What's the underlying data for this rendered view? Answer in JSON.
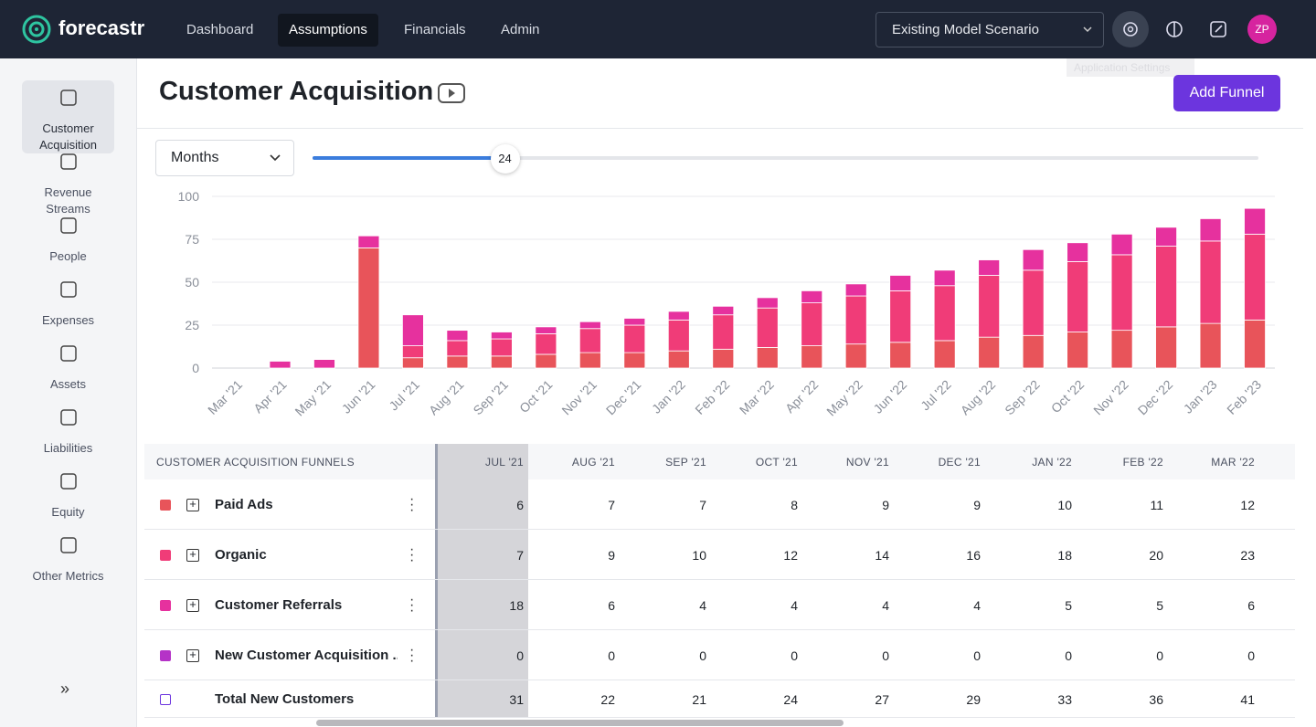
{
  "app": {
    "logo": "forecastr",
    "nav": [
      "Dashboard",
      "Assumptions",
      "Financials",
      "Admin"
    ],
    "active_nav": 1,
    "scenario": "Existing Model Scenario",
    "tooltip": "Application Settings",
    "avatar": "ZP"
  },
  "sidebar": {
    "items": [
      "Customer Acquisition",
      "Revenue Streams",
      "People",
      "Expenses",
      "Assets",
      "Liabilities",
      "Equity",
      "Other Metrics"
    ],
    "active": 0,
    "collapse": "»"
  },
  "header": {
    "title": "Customer Acquisition",
    "button": "Add Funnel"
  },
  "controls": {
    "period": "Months",
    "slider": 24
  },
  "chart_data": {
    "type": "stacked-bar",
    "categories": [
      "Mar '21",
      "Apr '21",
      "May '21",
      "Jun '21",
      "Jul '21",
      "Aug '21",
      "Sep '21",
      "Oct '21",
      "Nov '21",
      "Dec '21",
      "Jan '22",
      "Feb '22",
      "Mar '22",
      "Apr '22",
      "May '22",
      "Jun '22",
      "Jul '22",
      "Aug '22",
      "Sep '22",
      "Oct '22",
      "Nov '22",
      "Dec '22",
      "Jan '23",
      "Feb '23"
    ],
    "series": [
      {
        "name": "Paid Ads",
        "color": "#e8545a",
        "values": [
          0,
          0,
          0,
          70,
          6,
          7,
          7,
          8,
          9,
          9,
          10,
          11,
          12,
          13,
          14,
          15,
          16,
          18,
          19,
          21,
          22,
          24,
          26,
          28
        ]
      },
      {
        "name": "Organic",
        "color": "#f03c78",
        "values": [
          0,
          0,
          0,
          0,
          7,
          9,
          10,
          12,
          14,
          16,
          18,
          20,
          23,
          25,
          28,
          30,
          32,
          36,
          38,
          41,
          44,
          47,
          48,
          50
        ]
      },
      {
        "name": "Customer Referrals",
        "color": "#e6319e",
        "values": [
          0,
          4,
          5,
          7,
          18,
          6,
          4,
          4,
          4,
          4,
          5,
          5,
          6,
          7,
          7,
          9,
          9,
          9,
          12,
          11,
          12,
          11,
          13,
          15
        ]
      },
      {
        "name": "New Customer Acquisition ...",
        "color": "#b533c7",
        "values": [
          0,
          0,
          0,
          0,
          0,
          0,
          0,
          0,
          0,
          0,
          0,
          0,
          0,
          0,
          0,
          0,
          0,
          0,
          0,
          0,
          0,
          0,
          0,
          0
        ]
      }
    ],
    "ylim": [
      0,
      100
    ],
    "yticks": [
      0,
      25,
      50,
      75,
      100
    ],
    "grid": true
  },
  "table": {
    "heading": "CUSTOMER ACQUISITION FUNNELS",
    "columns": [
      "JUL '21",
      "AUG '21",
      "SEP '21",
      "OCT '21",
      "NOV '21",
      "DEC '21",
      "JAN '22",
      "FEB '22",
      "MAR '22"
    ],
    "rows": [
      {
        "name": "Paid Ads",
        "color": "#e8545a",
        "values": [
          6,
          7,
          7,
          8,
          9,
          9,
          10,
          11,
          12
        ]
      },
      {
        "name": "Organic",
        "color": "#f03c78",
        "values": [
          7,
          9,
          10,
          12,
          14,
          16,
          18,
          20,
          23
        ]
      },
      {
        "name": "Customer Referrals",
        "color": "#e6319e",
        "values": [
          18,
          6,
          4,
          4,
          4,
          4,
          5,
          5,
          6
        ]
      },
      {
        "name": "New Customer Acquisition ...",
        "color": "#b533c7",
        "values": [
          0,
          0,
          0,
          0,
          0,
          0,
          0,
          0,
          0
        ]
      }
    ],
    "total": {
      "name": "Total New Customers",
      "values": [
        31,
        22,
        21,
        24,
        27,
        29,
        33,
        36,
        41
      ]
    }
  }
}
